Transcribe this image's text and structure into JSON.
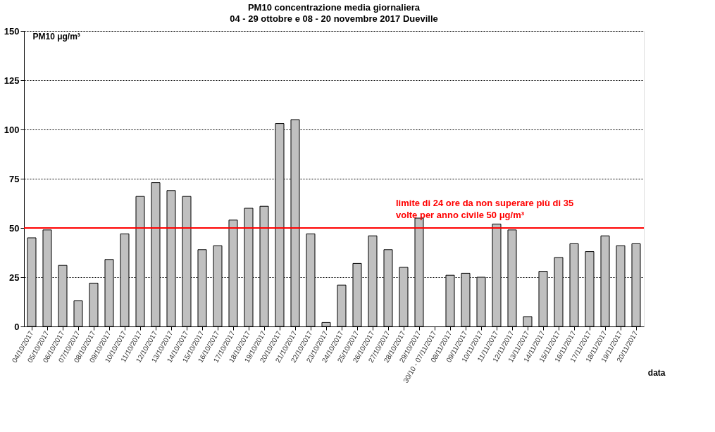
{
  "chart_data": {
    "type": "bar",
    "title": "PM10 concentrazione media giornaliera",
    "subtitle": "04 - 29 ottobre e 08 - 20 novembre 2017 Dueville",
    "xlabel": "data",
    "ylabel": "PM10 μg/m³",
    "categories": [
      "04/10/2017",
      "05/10/2017",
      "06/10/2017",
      "07/10/2017",
      "08/10/2017",
      "09/10/2017",
      "10/10/2017",
      "11/10/2017",
      "12/10/2017",
      "13/10/2017",
      "14/10/2017",
      "15/10/2017",
      "16/10/2017",
      "17/10/2017",
      "18/10/2017",
      "19/10/2017",
      "20/10/2017",
      "21/10/2017",
      "22/10/2017",
      "23/10/2017",
      "24/10/2017",
      "25/10/2017",
      "26/10/2017",
      "27/10/2017",
      "28/10/2017",
      "29/10/2017",
      "30/10 - 07/11/2017",
      "08/11/2017",
      "09/11/2017",
      "10/11/2017",
      "11/11/2017",
      "12/11/2017",
      "13/11/2017",
      "14/11/2017",
      "15/11/2017",
      "16/11/2017",
      "17/11/2017",
      "18/11/2017",
      "19/11/2017",
      "20/11/2017"
    ],
    "values": [
      45,
      49,
      31,
      13,
      22,
      34,
      47,
      66,
      73,
      69,
      66,
      39,
      41,
      54,
      60,
      61,
      103,
      105,
      47,
      2,
      21,
      32,
      46,
      39,
      30,
      55,
      null,
      26,
      27,
      25,
      52,
      49,
      5,
      28,
      35,
      42,
      38,
      46,
      41,
      42
    ],
    "color": "#c0c0c0",
    "ylim": [
      0,
      150
    ],
    "yticks": [
      0,
      25,
      50,
      75,
      100,
      125,
      150
    ],
    "grid": "y",
    "ref_lines": [
      {
        "axis": "y",
        "value": 50,
        "label": "limite di 24 ore da non superare più di 35 volte per anno civile 50 μg/m³",
        "color": "#ff0000"
      }
    ]
  }
}
